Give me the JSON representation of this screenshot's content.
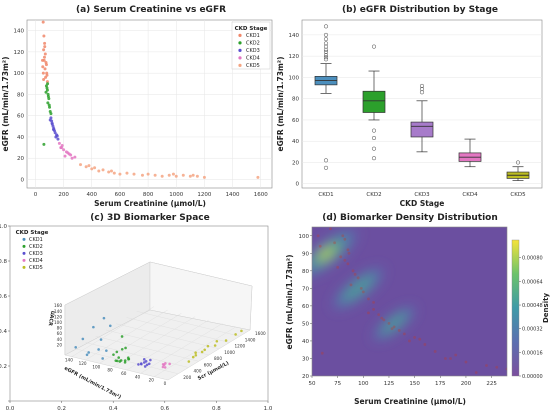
{
  "colors": {
    "CKD1": "#4c8fbd",
    "CKD2": "#2ca02c",
    "CKD3": "#5a4fcf",
    "CKD4": "#e377c2",
    "CKD5": "#bcbd22",
    "scatter_ckd1": "#f0876a",
    "scatter_ckd5": "#f4a582",
    "density_low": "#6b4fa0",
    "density_high": "#f5e33a"
  },
  "chart_data": [
    {
      "id": "a",
      "type": "scatter",
      "title": "(a) Serum Creatinine vs eGFR",
      "xlabel": "Serum Creatinine (µmol/L)",
      "ylabel": "eGFR (mL/min/1.73m²)",
      "xlim": [
        -60,
        1680
      ],
      "ylim": [
        -8,
        150
      ],
      "xticks": [
        0,
        200,
        400,
        600,
        800,
        1000,
        1200,
        1400,
        1600
      ],
      "yticks": [
        0,
        20,
        40,
        60,
        80,
        100,
        120,
        140
      ],
      "grid": true,
      "legend": {
        "title": "CKD Stage",
        "placement": "top-right",
        "entries": [
          "CKD1",
          "CKD2",
          "CKD3",
          "CKD4",
          "CKD5"
        ]
      },
      "series": [
        {
          "name": "CKD1",
          "points": [
            [
              55,
              148
            ],
            [
              60,
              135
            ],
            [
              65,
              128
            ],
            [
              58,
              122
            ],
            [
              70,
              118
            ],
            [
              62,
              112
            ],
            [
              75,
              110
            ],
            [
              52,
              106
            ],
            [
              68,
              104
            ],
            [
              80,
              100
            ],
            [
              72,
              96
            ],
            [
              58,
              94
            ],
            [
              85,
              92
            ],
            [
              64,
              115
            ],
            [
              56,
              100
            ],
            [
              78,
              108
            ],
            [
              66,
              125
            ],
            [
              50,
              112
            ],
            [
              82,
              98
            ]
          ]
        },
        {
          "name": "CKD2",
          "points": [
            [
              78,
              88
            ],
            [
              85,
              84
            ],
            [
              90,
              80
            ],
            [
              95,
              76
            ],
            [
              88,
              72
            ],
            [
              100,
              68
            ],
            [
              105,
              64
            ],
            [
              82,
              86
            ],
            [
              92,
              78
            ],
            [
              98,
              70
            ],
            [
              60,
              33
            ],
            [
              75,
              82
            ],
            [
              110,
              62
            ],
            [
              86,
              90
            ]
          ]
        },
        {
          "name": "CKD3",
          "points": [
            [
              110,
              58
            ],
            [
              120,
              52
            ],
            [
              130,
              48
            ],
            [
              140,
              44
            ],
            [
              115,
              55
            ],
            [
              125,
              50
            ],
            [
              135,
              46
            ],
            [
              150,
              42
            ],
            [
              105,
              56
            ],
            [
              145,
              40
            ],
            [
              160,
              38
            ],
            [
              118,
              53
            ],
            [
              128,
              47
            ],
            [
              155,
              41
            ]
          ]
        },
        {
          "name": "CKD4",
          "points": [
            [
              170,
              34
            ],
            [
              185,
              30
            ],
            [
              200,
              28
            ],
            [
              220,
              26
            ],
            [
              240,
              24
            ],
            [
              210,
              22
            ],
            [
              260,
              20
            ],
            [
              190,
              32
            ],
            [
              230,
              25
            ],
            [
              180,
              30
            ],
            [
              280,
              21
            ],
            [
              250,
              23
            ]
          ]
        },
        {
          "name": "CKD5",
          "points": [
            [
              320,
              14
            ],
            [
              360,
              12
            ],
            [
              400,
              10
            ],
            [
              450,
              8
            ],
            [
              480,
              9
            ],
            [
              520,
              7
            ],
            [
              560,
              6
            ],
            [
              600,
              5
            ],
            [
              650,
              6
            ],
            [
              700,
              5
            ],
            [
              760,
              4
            ],
            [
              800,
              5
            ],
            [
              850,
              4
            ],
            [
              900,
              3
            ],
            [
              950,
              4
            ],
            [
              1000,
              3
            ],
            [
              1050,
              4
            ],
            [
              1100,
              3
            ],
            [
              1150,
              3
            ],
            [
              1200,
              2
            ],
            [
              1580,
              2
            ],
            [
              420,
              11
            ],
            [
              380,
              13
            ],
            [
              540,
              8
            ],
            [
              980,
              5
            ],
            [
              1120,
              4
            ]
          ]
        }
      ]
    },
    {
      "id": "b",
      "type": "box",
      "title": "(b) eGFR Distribution by Stage",
      "xlabel": "CKD Stage",
      "ylabel": "eGFR (mL/min/1.73m²)",
      "categories": [
        "CKD1",
        "CKD2",
        "CKD3",
        "CKD4",
        "CKD5"
      ],
      "ylim": [
        -4,
        154
      ],
      "yticks": [
        0,
        20,
        40,
        60,
        80,
        100,
        120,
        140
      ],
      "grid": true,
      "boxes": [
        {
          "min": 85,
          "q1": 93,
          "median": 97,
          "q3": 101,
          "max": 113,
          "outliers": [
            148,
            140,
            136,
            132,
            129,
            126,
            124,
            121,
            119,
            117,
            22,
            15
          ]
        },
        {
          "min": 60,
          "q1": 67,
          "median": 78,
          "q3": 87,
          "max": 106,
          "outliers": [
            129,
            50,
            43,
            33,
            24
          ]
        },
        {
          "min": 30,
          "q1": 44,
          "median": 54,
          "q3": 58,
          "max": 78,
          "outliers": [
            92,
            89,
            86
          ]
        },
        {
          "min": 16,
          "q1": 21,
          "median": 25,
          "q3": 29,
          "max": 42,
          "outliers": []
        },
        {
          "min": 3,
          "q1": 5,
          "median": 8,
          "q3": 11,
          "max": 16,
          "outliers": [
            20
          ]
        }
      ]
    },
    {
      "id": "c",
      "type": "scatter3d",
      "title": "(c) 3D Biomarker Space",
      "xlabel": "eGFR (mL/min/1.73m²)",
      "ylabel": "Scr (µmol/L)",
      "zlabel": "UACR",
      "outer_axes": {
        "xlim": [
          0,
          1
        ],
        "ylim": [
          0,
          1
        ],
        "xticks": [
          "0.0",
          "0.2",
          "0.4",
          "0.6",
          "0.8",
          "1.0"
        ],
        "yticks": [
          "0.0",
          "0.2",
          "0.4",
          "0.6",
          "0.8",
          "1.0"
        ]
      },
      "eGFR_ticks": [
        "0",
        "20",
        "40",
        "60",
        "80",
        "100",
        "120",
        "140"
      ],
      "scr_ticks": [
        "200",
        "400",
        "600",
        "800",
        "1000",
        "1200",
        "1400",
        "1600"
      ],
      "uacr_ticks": [
        "20",
        "40",
        "60",
        "80",
        "100",
        "120",
        "140",
        "160"
      ],
      "legend": {
        "title": "CKD Stage",
        "placement": "top-left",
        "entries": [
          "CKD1",
          "CKD2",
          "CKD3",
          "CKD4",
          "CKD5"
        ]
      },
      "series": [
        {
          "name": "CKD1",
          "points": [
            [
              110,
              120,
              30
            ],
            [
              130,
              80,
              60
            ],
            [
              100,
              90,
              150
            ],
            [
              95,
              70,
              40
            ],
            [
              120,
              60,
              20
            ],
            [
              105,
              100,
              70
            ],
            [
              140,
              75,
              25
            ],
            [
              115,
              85,
              110
            ],
            [
              100,
              65,
              10
            ],
            [
              125,
              95,
              5
            ],
            [
              90,
              80,
              130
            ]
          ]
        },
        {
          "name": "CKD2",
          "points": [
            [
              70,
              100,
              10
            ],
            [
              80,
              110,
              20
            ],
            [
              75,
              90,
              15
            ],
            [
              85,
              120,
              5
            ],
            [
              65,
              95,
              30
            ],
            [
              78,
              105,
              8
            ],
            [
              72,
              130,
              12
            ],
            [
              88,
              115,
              25
            ],
            [
              68,
              140,
              18
            ],
            [
              82,
              100,
              40
            ],
            [
              76,
              125,
              50
            ],
            [
              74,
              95,
              100
            ],
            [
              70,
              110,
              60
            ],
            [
              84,
              135,
              3
            ],
            [
              66,
              120,
              22
            ]
          ]
        },
        {
          "name": "CKD3",
          "points": [
            [
              45,
              140,
              20
            ],
            [
              50,
              150,
              10
            ],
            [
              40,
              170,
              15
            ],
            [
              55,
              160,
              5
            ],
            [
              48,
              180,
              25
            ],
            [
              42,
              155,
              12
            ],
            [
              52,
              175,
              8
            ],
            [
              38,
              165,
              30
            ],
            [
              46,
              190,
              18
            ],
            [
              44,
              145,
              6
            ]
          ]
        },
        {
          "name": "CKD4",
          "points": [
            [
              25,
              260,
              10
            ],
            [
              22,
              240,
              5
            ],
            [
              28,
              280,
              8
            ],
            [
              20,
              300,
              12
            ],
            [
              26,
              250,
              3
            ],
            [
              24,
              270,
              15
            ]
          ]
        },
        {
          "name": "CKD5",
          "points": [
            [
              8,
              600,
              10
            ],
            [
              10,
              800,
              5
            ],
            [
              6,
              1000,
              8
            ],
            [
              12,
              700,
              12
            ],
            [
              5,
              1200,
              4
            ],
            [
              9,
              900,
              15
            ],
            [
              7,
              500,
              6
            ],
            [
              11,
              1100,
              9
            ],
            [
              6,
              1400,
              3
            ],
            [
              8,
              650,
              11
            ],
            [
              10,
              850,
              7
            ],
            [
              5,
              1500,
              5
            ]
          ]
        }
      ]
    },
    {
      "id": "d",
      "type": "density",
      "title": "(d) Biomarker Density Distribution",
      "xlabel": "Serum Creatinine (µmol/L)",
      "ylabel": "eGFR (mL/min/1.73m²)",
      "colorbar_label": "Density",
      "xlim": [
        50,
        240
      ],
      "ylim": [
        20,
        105
      ],
      "xticks": [
        50,
        75,
        100,
        125,
        150,
        175,
        200,
        225
      ],
      "yticks": [
        20,
        30,
        40,
        50,
        60,
        70,
        80,
        90,
        100
      ],
      "colorbar_range": [
        0,
        0.00092
      ],
      "colorbar_ticks": [
        "0.00000",
        "0.00016",
        "0.00032",
        "0.00048",
        "0.00064",
        "0.00080"
      ],
      "peaks": [
        {
          "x": 65,
          "y": 90
        },
        {
          "x": 95,
          "y": 70
        },
        {
          "x": 130,
          "y": 50
        }
      ]
    }
  ]
}
